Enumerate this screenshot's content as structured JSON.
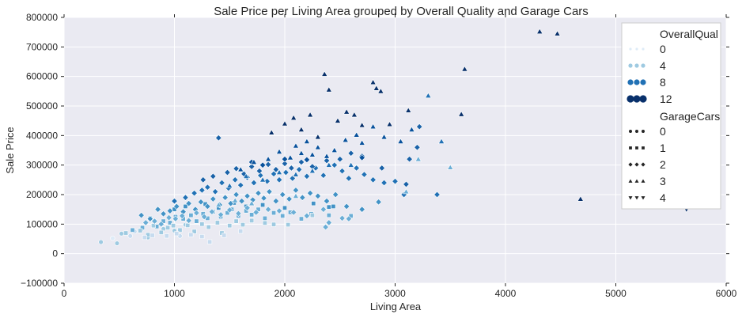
{
  "chart_data": {
    "type": "scatter",
    "title": "Sale Price per Living Area grouped by Overall Quality and Garage Cars",
    "xlabel": "Living Area",
    "ylabel": "Sale Price",
    "xlim": [
      0,
      6000
    ],
    "ylim": [
      -100000,
      800000
    ],
    "xticks": [
      "0",
      "1000",
      "2000",
      "3000",
      "4000",
      "5000",
      "6000"
    ],
    "yticks": [
      "−100000",
      "0",
      "100000",
      "200000",
      "300000",
      "400000",
      "500000",
      "600000",
      "700000",
      "800000"
    ],
    "grid": true,
    "legend_position": "top-right",
    "legend": {
      "hue_title": "OverallQual",
      "hue_entries": [
        {
          "label": "0",
          "color": "#deebf7"
        },
        {
          "label": "4",
          "color": "#9ecae1"
        },
        {
          "label": "8",
          "color": "#2171b5"
        },
        {
          "label": "12",
          "color": "#08306b"
        }
      ],
      "style_title": "GarageCars",
      "style_entries": [
        {
          "label": "0",
          "marker": "circle"
        },
        {
          "label": "1",
          "marker": "square"
        },
        {
          "label": "2",
          "marker": "diamond"
        },
        {
          "label": "3",
          "marker": "triangle-up"
        },
        {
          "label": "4",
          "marker": "triangle-down"
        }
      ]
    },
    "marker_by_garage": {
      "0": "circle",
      "1": "square",
      "2": "diamond",
      "3": "triangle-up",
      "4": "triangle-down"
    },
    "color_by_quality": {
      "1": "#e8f1fa",
      "2": "#deebf7",
      "3": "#c6dbef",
      "4": "#9ecae1",
      "5": "#6baed6",
      "6": "#4292c6",
      "7": "#2171b5",
      "8": "#1a62a8",
      "9": "#08519c",
      "10": "#08306b"
    },
    "series": [
      {
        "quality": 4,
        "garage": 0,
        "points": [
          [
            334,
            39300
          ],
          [
            480,
            35000
          ],
          [
            520,
            68000
          ],
          [
            700,
            82000
          ],
          [
            760,
            55000
          ],
          [
            900,
            84000
          ],
          [
            1000,
            78000
          ],
          [
            1100,
            98000
          ]
        ]
      },
      {
        "quality": 3,
        "garage": 0,
        "points": [
          [
            600,
            60000
          ],
          [
            640,
            75000
          ],
          [
            1050,
            60000
          ]
        ]
      },
      {
        "quality": 2,
        "garage": 0,
        "points": [
          [
            440,
            52000
          ]
        ]
      },
      {
        "quality": 5,
        "garage": 1,
        "points": [
          [
            620,
            80000
          ],
          [
            710,
            88000
          ],
          [
            780,
            120000
          ],
          [
            840,
            92000
          ],
          [
            900,
            110000
          ],
          [
            960,
            105000
          ],
          [
            1010,
            125000
          ],
          [
            1080,
            118000
          ],
          [
            1150,
            130000
          ],
          [
            1200,
            110000
          ],
          [
            1260,
            135000
          ],
          [
            1300,
            120000
          ],
          [
            1350,
            142000
          ],
          [
            1420,
            125000
          ],
          [
            1480,
            138000
          ],
          [
            1520,
            150000
          ],
          [
            1580,
            128000
          ],
          [
            1650,
            145000
          ],
          [
            1700,
            132000
          ],
          [
            1760,
            150000
          ],
          [
            1820,
            120000
          ],
          [
            1900,
            138000
          ],
          [
            1980,
            128000
          ],
          [
            2050,
            140000
          ],
          [
            2150,
            118000
          ],
          [
            2240,
            135000
          ],
          [
            2400,
            130000
          ],
          [
            2600,
            128000
          ]
        ]
      },
      {
        "quality": 4,
        "garage": 1,
        "points": [
          [
            560,
            70000
          ],
          [
            690,
            78000
          ],
          [
            760,
            64000
          ],
          [
            810,
            95000
          ],
          [
            880,
            72000
          ],
          [
            940,
            88000
          ],
          [
            990,
            95000
          ],
          [
            1050,
            80000
          ],
          [
            1120,
            96000
          ],
          [
            1180,
            75000
          ],
          [
            1250,
            100000
          ],
          [
            1310,
            90000
          ],
          [
            1390,
            105000
          ],
          [
            1430,
            70000
          ],
          [
            1500,
            95000
          ],
          [
            1560,
            110000
          ],
          [
            1620,
            98000
          ],
          [
            1700,
            112000
          ],
          [
            1820,
            104000
          ],
          [
            1900,
            99000
          ],
          [
            2030,
            98000
          ],
          [
            2250,
            130000
          ]
        ]
      },
      {
        "quality": 3,
        "garage": 1,
        "points": [
          [
            730,
            55000
          ],
          [
            800,
            62000
          ],
          [
            930,
            60000
          ],
          [
            1020,
            68000
          ],
          [
            1150,
            64000
          ],
          [
            1250,
            58000
          ],
          [
            1320,
            40000
          ],
          [
            1450,
            62000
          ],
          [
            1600,
            76000
          ]
        ]
      },
      {
        "quality": 6,
        "garage": 1,
        "points": [
          [
            1000,
            150000
          ],
          [
            1100,
            160000
          ],
          [
            1280,
            168000
          ],
          [
            1400,
            155000
          ],
          [
            1540,
            172000
          ],
          [
            1650,
            160000
          ],
          [
            1800,
            165000
          ],
          [
            2000,
            155000
          ],
          [
            2260,
            170000
          ],
          [
            2400,
            158000
          ],
          [
            2440,
            160000
          ]
        ]
      },
      {
        "quality": 6,
        "garage": 2,
        "points": [
          [
            700,
            130000
          ],
          [
            780,
            118000
          ],
          [
            850,
            150000
          ],
          [
            900,
            135000
          ],
          [
            960,
            145000
          ],
          [
            1020,
            160000
          ],
          [
            1080,
            142000
          ],
          [
            1130,
            170000
          ],
          [
            1190,
            150000
          ],
          [
            1240,
            175000
          ],
          [
            1300,
            160000
          ],
          [
            1350,
            185000
          ],
          [
            1410,
            165000
          ],
          [
            1460,
            190000
          ],
          [
            1510,
            170000
          ],
          [
            1560,
            200000
          ],
          [
            1610,
            178000
          ],
          [
            1660,
            195000
          ],
          [
            1710,
            182000
          ],
          [
            1760,
            205000
          ],
          [
            1810,
            188000
          ],
          [
            1860,
            210000
          ],
          [
            1920,
            178000
          ],
          [
            1980,
            200000
          ],
          [
            2040,
            185000
          ],
          [
            2100,
            215000
          ],
          [
            2160,
            190000
          ],
          [
            2230,
            205000
          ],
          [
            2300,
            195000
          ],
          [
            2380,
            178000
          ],
          [
            2460,
            200000
          ],
          [
            2560,
            160000
          ],
          [
            2700,
            150000
          ],
          [
            2850,
            175000
          ]
        ]
      },
      {
        "quality": 5,
        "garage": 2,
        "points": [
          [
            740,
            105000
          ],
          [
            820,
            110000
          ],
          [
            880,
            100000
          ],
          [
            950,
            122000
          ],
          [
            1010,
            118000
          ],
          [
            1070,
            128000
          ],
          [
            1130,
            112000
          ],
          [
            1200,
            138000
          ],
          [
            1270,
            125000
          ],
          [
            1340,
            142000
          ],
          [
            1420,
            132000
          ],
          [
            1500,
            148000
          ],
          [
            1580,
            136000
          ],
          [
            1660,
            155000
          ],
          [
            1740,
            140000
          ],
          [
            1850,
            150000
          ],
          [
            1950,
            145000
          ],
          [
            2080,
            140000
          ],
          [
            2200,
            128000
          ],
          [
            2350,
            150000
          ],
          [
            2370,
            90000
          ],
          [
            2400,
            105000
          ],
          [
            2520,
            120000
          ],
          [
            2580,
            118000
          ]
        ]
      },
      {
        "quality": 7,
        "garage": 2,
        "points": [
          [
            1000,
            178000
          ],
          [
            1100,
            190000
          ],
          [
            1180,
            205000
          ],
          [
            1250,
            215000
          ],
          [
            1300,
            225000
          ],
          [
            1370,
            210000
          ],
          [
            1430,
            240000
          ],
          [
            1490,
            222000
          ],
          [
            1550,
            250000
          ],
          [
            1600,
            232000
          ],
          [
            1660,
            258000
          ],
          [
            1720,
            240000
          ],
          [
            1780,
            265000
          ],
          [
            1840,
            245000
          ],
          [
            1900,
            270000
          ],
          [
            1950,
            250000
          ],
          [
            2010,
            275000
          ],
          [
            2070,
            255000
          ],
          [
            2130,
            285000
          ],
          [
            2200,
            262000
          ],
          [
            2280,
            290000
          ],
          [
            2350,
            265000
          ],
          [
            2450,
            300000
          ],
          [
            2520,
            280000
          ],
          [
            2580,
            255000
          ],
          [
            2650,
            290000
          ],
          [
            2720,
            268000
          ],
          [
            2800,
            250000
          ],
          [
            2900,
            240000
          ],
          [
            3000,
            245000
          ],
          [
            3080,
            200000
          ],
          [
            3380,
            200000
          ]
        ]
      },
      {
        "quality": 8,
        "garage": 2,
        "points": [
          [
            1400,
            392000
          ],
          [
            1260,
            250000
          ],
          [
            1350,
            262000
          ],
          [
            1480,
            275000
          ],
          [
            1560,
            288000
          ],
          [
            1630,
            270000
          ],
          [
            1700,
            295000
          ],
          [
            1770,
            280000
          ],
          [
            1850,
            302000
          ],
          [
            1920,
            285000
          ],
          [
            2000,
            305000
          ],
          [
            2060,
            290000
          ],
          [
            2150,
            310000
          ],
          [
            2250,
            295000
          ],
          [
            2380,
            315000
          ],
          [
            2500,
            320000
          ],
          [
            2600,
            340000
          ],
          [
            2700,
            330000
          ],
          [
            2880,
            290000
          ],
          [
            3130,
            320000
          ],
          [
            3200,
            360000
          ],
          [
            3220,
            430000
          ],
          [
            3100,
            235000
          ]
        ]
      },
      {
        "quality": 9,
        "garage": 2,
        "points": [
          [
            1700,
            310000
          ],
          [
            1800,
            300000
          ],
          [
            2000,
            320000
          ],
          [
            2200,
            318000
          ],
          [
            2700,
            325000
          ]
        ]
      },
      {
        "quality": 5,
        "garage": 3,
        "points": [
          [
            1400,
            165000
          ],
          [
            1550,
            180000
          ],
          [
            1700,
            170000
          ],
          [
            2100,
            195000
          ],
          [
            3100,
            210000
          ],
          [
            3210,
            320000
          ],
          [
            3500,
            292000
          ]
        ]
      },
      {
        "quality": 7,
        "garage": 3,
        "points": [
          [
            1500,
            230000
          ],
          [
            1650,
            262000
          ],
          [
            1800,
            250000
          ],
          [
            1950,
            275000
          ],
          [
            2100,
            268000
          ],
          [
            2250,
            280000
          ],
          [
            2400,
            300000
          ],
          [
            2600,
            300000
          ],
          [
            3420,
            380000
          ],
          [
            3300,
            535000
          ]
        ]
      },
      {
        "quality": 9,
        "garage": 3,
        "points": [
          [
            1600,
            285000
          ],
          [
            1720,
            310000
          ],
          [
            1850,
            320000
          ],
          [
            1950,
            345000
          ],
          [
            2050,
            325000
          ],
          [
            2100,
            365000
          ],
          [
            2150,
            340000
          ],
          [
            2200,
            380000
          ],
          [
            2250,
            335000
          ],
          [
            2300,
            360000
          ],
          [
            2380,
            330000
          ],
          [
            2450,
            350000
          ],
          [
            2550,
            385000
          ],
          [
            2650,
            402000
          ],
          [
            2700,
            375000
          ],
          [
            2800,
            430000
          ],
          [
            2900,
            395000
          ],
          [
            3050,
            380000
          ],
          [
            3150,
            420000
          ]
        ]
      },
      {
        "quality": 10,
        "garage": 3,
        "points": [
          [
            1880,
            410000
          ],
          [
            2000,
            440000
          ],
          [
            2080,
            460000
          ],
          [
            2150,
            420000
          ],
          [
            2230,
            470000
          ],
          [
            2300,
            395000
          ],
          [
            2360,
            608000
          ],
          [
            2400,
            555000
          ],
          [
            2480,
            450000
          ],
          [
            2560,
            480000
          ],
          [
            2630,
            470000
          ],
          [
            2700,
            435000
          ],
          [
            2800,
            580000
          ],
          [
            2830,
            560000
          ],
          [
            2870,
            550000
          ],
          [
            2950,
            438000
          ],
          [
            3120,
            485000
          ],
          [
            3600,
            472000
          ],
          [
            3630,
            625000
          ],
          [
            4310,
            752000
          ],
          [
            4470,
            745000
          ],
          [
            4680,
            185000
          ]
        ]
      },
      {
        "quality": 10,
        "garage": 4,
        "points": [
          [
            5640,
            150000
          ]
        ]
      }
    ]
  }
}
